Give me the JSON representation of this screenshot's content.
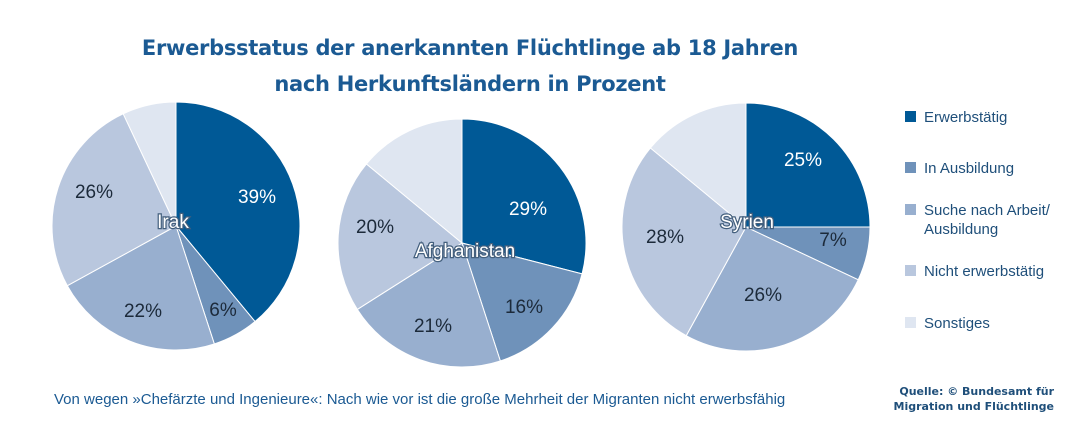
{
  "title": {
    "line1": "Erwerbsstatus der anerkannten Flüchtlinge ab 18 Jahren",
    "line2": "nach Herkunftsländern in Prozent"
  },
  "chart_data": [
    {
      "type": "pie",
      "title": "Irak",
      "categories": [
        "Erwerbstätig",
        "In Ausbildung",
        "Suche nach Arbeit/ Ausbildung",
        "Nicht erwerbstätig",
        "Sonstiges"
      ],
      "values": [
        39,
        6,
        22,
        26,
        7
      ],
      "labels": [
        "39%",
        "6%",
        "22%",
        "26%",
        ""
      ]
    },
    {
      "type": "pie",
      "title": "Afghanistan",
      "categories": [
        "Erwerbstätig",
        "In Ausbildung",
        "Suche nach Arbeit/ Ausbildung",
        "Nicht erwerbstätig",
        "Sonstiges"
      ],
      "values": [
        29,
        16,
        21,
        20,
        14
      ],
      "labels": [
        "29%",
        "16%",
        "21%",
        "20%",
        ""
      ]
    },
    {
      "type": "pie",
      "title": "Syrien",
      "categories": [
        "Erwerbstätig",
        "In Ausbildung",
        "Suche nach Arbeit/ Ausbildung",
        "Nicht erwerbstätig",
        "Sonstiges"
      ],
      "values": [
        25,
        7,
        26,
        28,
        14
      ],
      "labels": [
        "25%",
        "7%",
        "26%",
        "28%",
        ""
      ]
    }
  ],
  "legend": [
    {
      "label": "Erwerbstätig",
      "color": "#005996"
    },
    {
      "label": "In Ausbildung",
      "color": "#6f92ba"
    },
    {
      "label": "Suche nach Arbeit/\nAusbildung",
      "color": "#98afcf"
    },
    {
      "label": "Nicht erwerbstätig",
      "color": "#b9c7de"
    },
    {
      "label": "Sonstiges",
      "color": "#dfe6f1"
    }
  ],
  "colors": [
    "#005996",
    "#6f92ba",
    "#98afcf",
    "#b9c7de",
    "#dfe6f1"
  ],
  "caption": "Von wegen »Chefärzte und Ingenieure«: Nach wie vor ist die große Mehrheit der Migranten nicht erwerbsfähig",
  "source": {
    "line1": "Quelle: © Bundesamt für",
    "line2": "Migration und Flüchtlinge"
  }
}
